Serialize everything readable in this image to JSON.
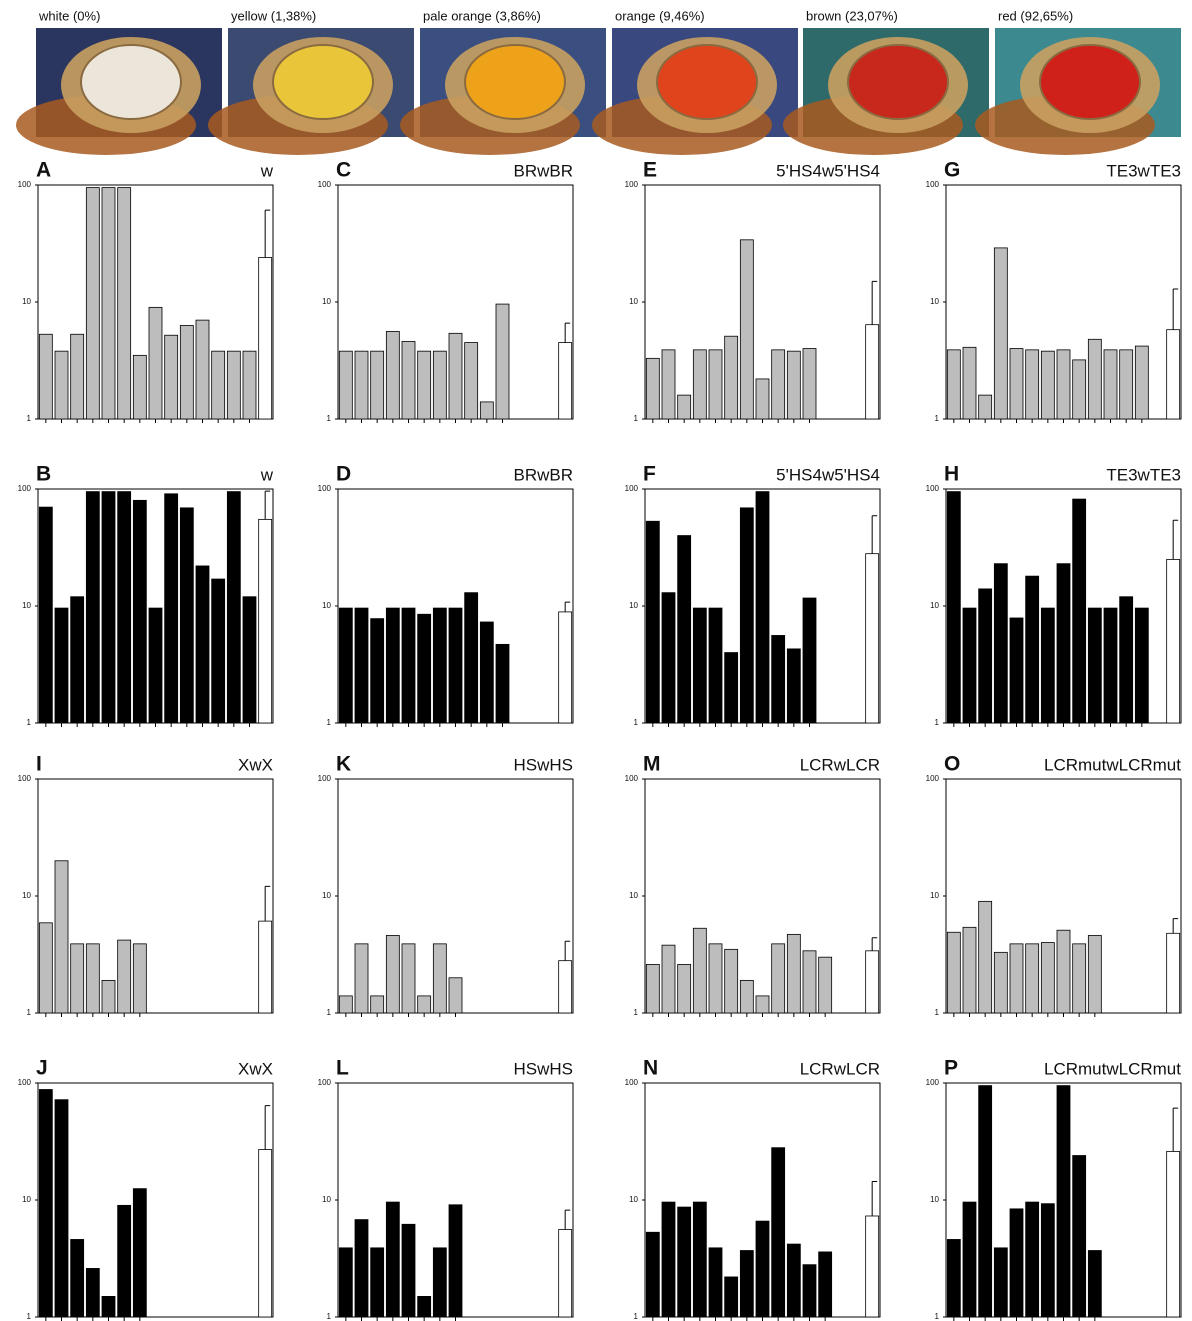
{
  "photos": [
    {
      "label": "white (0%)"
    },
    {
      "label": "yellow (1,38%)"
    },
    {
      "label": "pale orange (3,86%)"
    },
    {
      "label": "orange (9,46%)"
    },
    {
      "label": "brown (23,07%)"
    },
    {
      "label": "red (92,65%)"
    }
  ],
  "chart_data": [
    {
      "type": "bar",
      "panel": "A",
      "title": "w",
      "log_scale": true,
      "ylim": [
        1,
        100
      ],
      "yticks": [
        1,
        10,
        100
      ],
      "color": "#bdbdbd",
      "mean_color": "#ffffff",
      "values": [
        5.3,
        3.8,
        5.3,
        95,
        95,
        95,
        3.5,
        9,
        5.2,
        6.3,
        7,
        3.8,
        3.8,
        3.8
      ],
      "mean": 24,
      "mean_error": 37
    },
    {
      "type": "bar",
      "panel": "C",
      "title": "BRwBR",
      "log_scale": true,
      "ylim": [
        1,
        100
      ],
      "yticks": [
        1,
        10,
        100
      ],
      "color": "#bdbdbd",
      "mean_color": "#ffffff",
      "values": [
        3.8,
        3.8,
        3.8,
        5.6,
        4.6,
        3.8,
        3.8,
        5.4,
        4.5,
        1.4,
        9.6
      ],
      "mean": 4.5,
      "mean_error": 2.1
    },
    {
      "type": "bar",
      "panel": "E",
      "title": "5'HS4w5'HS4",
      "log_scale": true,
      "ylim": [
        1,
        100
      ],
      "yticks": [
        1,
        10,
        100
      ],
      "color": "#bdbdbd",
      "mean_color": "#ffffff",
      "values": [
        3.3,
        3.9,
        1.6,
        3.9,
        3.9,
        5.1,
        34,
        2.2,
        3.9,
        3.8,
        4
      ],
      "mean": 6.4,
      "mean_error": 8.6
    },
    {
      "type": "bar",
      "panel": "G",
      "title": "TE3wTE3",
      "log_scale": true,
      "ylim": [
        1,
        100
      ],
      "yticks": [
        1,
        10,
        100
      ],
      "color": "#bdbdbd",
      "mean_color": "#ffffff",
      "values": [
        3.9,
        4.1,
        1.6,
        29,
        4,
        3.9,
        3.8,
        3.9,
        3.2,
        4.8,
        3.9,
        3.9,
        4.2
      ],
      "mean": 5.8,
      "mean_error": 7.1
    },
    {
      "type": "bar",
      "panel": "B",
      "title": "w",
      "log_scale": true,
      "ylim": [
        1,
        100
      ],
      "yticks": [
        1,
        10,
        100
      ],
      "color": "#000000",
      "mean_color": "#ffffff",
      "values": [
        70,
        9.6,
        12,
        95,
        95,
        95,
        80,
        9.6,
        91,
        69,
        22,
        17,
        95,
        12
      ],
      "mean": 55,
      "mean_error": 41
    },
    {
      "type": "bar",
      "panel": "D",
      "title": "BRwBR",
      "log_scale": true,
      "ylim": [
        1,
        100
      ],
      "yticks": [
        1,
        10,
        100
      ],
      "color": "#000000",
      "mean_color": "#ffffff",
      "values": [
        9.6,
        9.6,
        7.8,
        9.6,
        9.6,
        8.5,
        9.6,
        9.6,
        13,
        7.3,
        4.7
      ],
      "mean": 8.9,
      "mean_error": 1.9
    },
    {
      "type": "bar",
      "panel": "F",
      "title": "5'HS4w5'HS4",
      "log_scale": true,
      "ylim": [
        1,
        100
      ],
      "yticks": [
        1,
        10,
        100
      ],
      "color": "#000000",
      "mean_color": "#ffffff",
      "values": [
        53,
        13,
        40,
        9.6,
        9.6,
        4,
        69,
        95,
        5.6,
        4.3,
        11.7
      ],
      "mean": 28,
      "mean_error": 31
    },
    {
      "type": "bar",
      "panel": "H",
      "title": "TE3wTE3",
      "log_scale": true,
      "ylim": [
        1,
        100
      ],
      "yticks": [
        1,
        10,
        100
      ],
      "color": "#000000",
      "mean_color": "#ffffff",
      "values": [
        95,
        9.6,
        14,
        23,
        7.9,
        18,
        9.6,
        23,
        82,
        9.6,
        9.6,
        12,
        9.6
      ],
      "mean": 25,
      "mean_error": 29
    },
    {
      "type": "bar",
      "panel": "I",
      "title": "XwX",
      "log_scale": true,
      "ylim": [
        1,
        100
      ],
      "yticks": [
        1,
        10,
        100
      ],
      "color": "#bdbdbd",
      "mean_color": "#ffffff",
      "values": [
        5.9,
        20,
        3.9,
        3.9,
        1.9,
        4.2,
        3.9
      ],
      "mean": 6.1,
      "mean_error": 6
    },
    {
      "type": "bar",
      "panel": "K",
      "title": "HSwHS",
      "log_scale": true,
      "ylim": [
        1,
        100
      ],
      "yticks": [
        1,
        10,
        100
      ],
      "color": "#bdbdbd",
      "mean_color": "#ffffff",
      "values": [
        1.4,
        3.9,
        1.4,
        4.6,
        3.9,
        1.4,
        3.9,
        2
      ],
      "mean": 2.8,
      "mean_error": 1.3
    },
    {
      "type": "bar",
      "panel": "M",
      "title": "LCRwLCR",
      "log_scale": true,
      "ylim": [
        1,
        100
      ],
      "yticks": [
        1,
        10,
        100
      ],
      "color": "#bdbdbd",
      "mean_color": "#ffffff",
      "values": [
        2.6,
        3.8,
        2.6,
        5.3,
        3.9,
        3.5,
        1.9,
        1.4,
        3.9,
        4.7,
        3.4,
        3
      ],
      "mean": 3.4,
      "mean_error": 1
    },
    {
      "type": "bar",
      "panel": "O",
      "title": "LCRmutwLCRmut",
      "log_scale": true,
      "ylim": [
        1,
        100
      ],
      "yticks": [
        1,
        10,
        100
      ],
      "color": "#bdbdbd",
      "mean_color": "#ffffff",
      "values": [
        4.9,
        5.4,
        9,
        3.3,
        3.9,
        3.9,
        4,
        5.1,
        3.9,
        4.6
      ],
      "mean": 4.8,
      "mean_error": 1.6
    },
    {
      "type": "bar",
      "panel": "J",
      "title": "XwX",
      "log_scale": true,
      "ylim": [
        1,
        100
      ],
      "yticks": [
        1,
        10,
        100
      ],
      "color": "#000000",
      "mean_color": "#ffffff",
      "values": [
        88,
        72,
        4.6,
        2.6,
        1.5,
        9,
        12.5
      ],
      "mean": 27,
      "mean_error": 37
    },
    {
      "type": "bar",
      "panel": "L",
      "title": "HSwHS",
      "log_scale": true,
      "ylim": [
        1,
        100
      ],
      "yticks": [
        1,
        10,
        100
      ],
      "color": "#000000",
      "mean_color": "#ffffff",
      "values": [
        3.9,
        6.8,
        3.9,
        9.6,
        6.2,
        1.5,
        3.9,
        9.1
      ],
      "mean": 5.6,
      "mean_error": 2.6
    },
    {
      "type": "bar",
      "panel": "N",
      "title": "LCRwLCR",
      "log_scale": true,
      "ylim": [
        1,
        100
      ],
      "yticks": [
        1,
        10,
        100
      ],
      "color": "#000000",
      "mean_color": "#ffffff",
      "values": [
        5.3,
        9.6,
        8.7,
        9.6,
        3.9,
        2.2,
        3.7,
        6.6,
        28,
        4.2,
        2.8,
        3.6
      ],
      "mean": 7.3,
      "mean_error": 7.1
    },
    {
      "type": "bar",
      "panel": "P",
      "title": "LCRmutwLCRmut",
      "log_scale": true,
      "ylim": [
        1,
        100
      ],
      "yticks": [
        1,
        10,
        100
      ],
      "color": "#000000",
      "mean_color": "#ffffff",
      "values": [
        4.6,
        9.6,
        95,
        3.9,
        8.4,
        9.6,
        9.3,
        95,
        24,
        3.7
      ],
      "mean": 26,
      "mean_error": 35
    }
  ]
}
